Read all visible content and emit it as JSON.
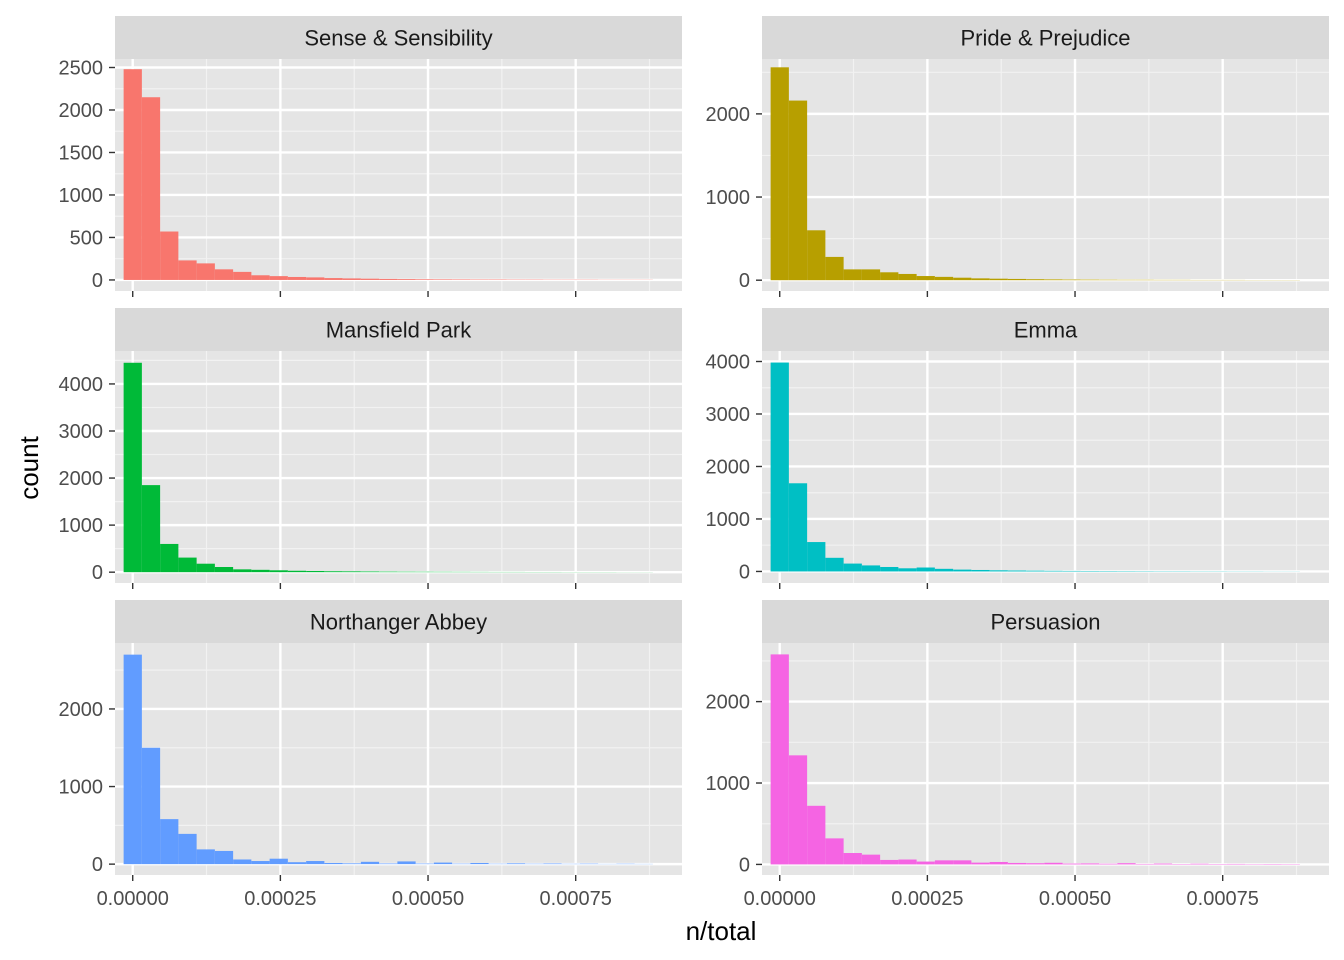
{
  "chart_data": {
    "type": "bar",
    "subtype": "faceted-histogram",
    "xlabel": "n/total",
    "ylabel": "count",
    "x_range": [
      -3e-05,
      0.00093
    ],
    "x_ticks": [
      {
        "value": 0.0,
        "label": "0.00000"
      },
      {
        "value": 0.00025,
        "label": "0.00025"
      },
      {
        "value": 0.0005,
        "label": "0.00050"
      },
      {
        "value": 0.00075,
        "label": "0.00075"
      }
    ],
    "bin_start": -1.54e-05,
    "bin_width": 3.09e-05,
    "grid": true,
    "background": "#e5e5e5",
    "facets": [
      {
        "name": "Sense & Sensibility",
        "color": "#F8766D",
        "ylim": [
          -130,
          2600
        ],
        "y_ticks": [
          {
            "value": 0,
            "label": "0"
          },
          {
            "value": 500,
            "label": "500"
          },
          {
            "value": 1000,
            "label": "1000"
          },
          {
            "value": 1500,
            "label": "1500"
          },
          {
            "value": 2000,
            "label": "2000"
          },
          {
            "value": 2500,
            "label": "2500"
          }
        ],
        "counts": [
          2480,
          2150,
          570,
          230,
          195,
          125,
          95,
          55,
          45,
          35,
          30,
          22,
          18,
          15,
          12,
          10,
          8,
          7,
          6,
          5,
          5,
          4,
          4,
          3,
          3,
          3,
          2,
          2,
          2
        ]
      },
      {
        "name": "Pride & Prejudice",
        "color": "#B79F00",
        "ylim": [
          -130,
          2660
        ],
        "y_ticks": [
          {
            "value": 0,
            "label": "0"
          },
          {
            "value": 1000,
            "label": "1000"
          },
          {
            "value": 2000,
            "label": "2000"
          }
        ],
        "counts": [
          2560,
          2160,
          600,
          280,
          130,
          130,
          95,
          75,
          50,
          40,
          30,
          22,
          18,
          15,
          12,
          10,
          8,
          7,
          6,
          5,
          5,
          4,
          4,
          3,
          3,
          3,
          2,
          2,
          2
        ]
      },
      {
        "name": "Mansfield Park",
        "color": "#00BA38",
        "ylim": [
          -230,
          4700
        ],
        "y_ticks": [
          {
            "value": 0,
            "label": "0"
          },
          {
            "value": 1000,
            "label": "1000"
          },
          {
            "value": 2000,
            "label": "2000"
          },
          {
            "value": 3000,
            "label": "3000"
          },
          {
            "value": 4000,
            "label": "4000"
          }
        ],
        "counts": [
          4450,
          1850,
          600,
          310,
          180,
          110,
          60,
          50,
          40,
          30,
          25,
          20,
          18,
          15,
          12,
          10,
          9,
          8,
          7,
          6,
          5,
          5,
          4,
          4,
          3,
          3,
          3,
          2,
          2
        ]
      },
      {
        "name": "Emma",
        "color": "#00BFC4",
        "ylim": [
          -220,
          4200
        ],
        "y_ticks": [
          {
            "value": 0,
            "label": "0"
          },
          {
            "value": 1000,
            "label": "1000"
          },
          {
            "value": 2000,
            "label": "2000"
          },
          {
            "value": 3000,
            "label": "3000"
          },
          {
            "value": 4000,
            "label": "4000"
          }
        ],
        "counts": [
          3980,
          1680,
          560,
          260,
          150,
          115,
          85,
          60,
          75,
          50,
          35,
          28,
          22,
          18,
          15,
          12,
          10,
          9,
          8,
          7,
          6,
          5,
          5,
          4,
          4,
          3,
          3,
          2,
          2
        ]
      },
      {
        "name": "Northanger Abbey",
        "color": "#619CFF",
        "ylim": [
          -140,
          2850
        ],
        "y_ticks": [
          {
            "value": 0,
            "label": "0"
          },
          {
            "value": 1000,
            "label": "1000"
          },
          {
            "value": 2000,
            "label": "2000"
          }
        ],
        "counts": [
          2700,
          1500,
          580,
          390,
          190,
          170,
          60,
          40,
          70,
          25,
          40,
          15,
          10,
          30,
          8,
          35,
          7,
          20,
          6,
          15,
          5,
          10,
          5,
          8,
          4,
          6,
          3,
          5,
          3
        ]
      },
      {
        "name": "Persuasion",
        "color": "#F564E3",
        "ylim": [
          -130,
          2720
        ],
        "y_ticks": [
          {
            "value": 0,
            "label": "0"
          },
          {
            "value": 1000,
            "label": "1000"
          },
          {
            "value": 2000,
            "label": "2000"
          }
        ],
        "counts": [
          2580,
          1340,
          720,
          320,
          140,
          120,
          55,
          60,
          35,
          50,
          50,
          22,
          30,
          18,
          15,
          20,
          10,
          12,
          8,
          15,
          6,
          10,
          5,
          8,
          5,
          6,
          4,
          5,
          4
        ]
      }
    ]
  }
}
